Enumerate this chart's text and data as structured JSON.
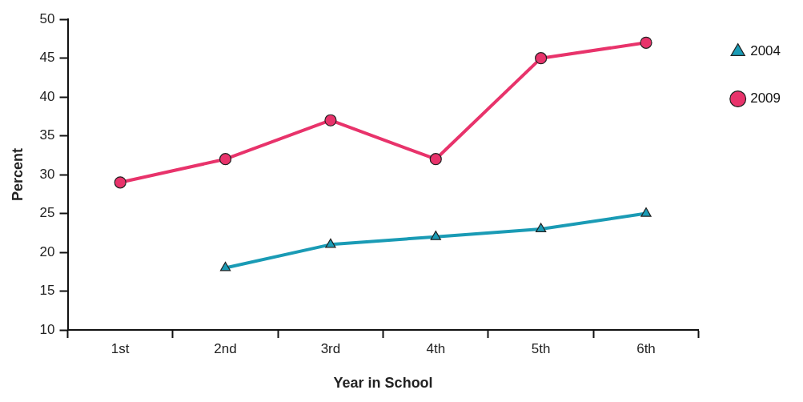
{
  "chart_data": {
    "type": "line",
    "xlabel": "Year in School",
    "ylabel": "Percent",
    "categories": [
      "1st",
      "2nd",
      "3rd",
      "4th",
      "5th",
      "6th"
    ],
    "series": [
      {
        "name": "2004",
        "color": "#1a9bb5",
        "marker": "triangle",
        "values": [
          null,
          18,
          21,
          22,
          23,
          25
        ]
      },
      {
        "name": "2009",
        "color": "#e8336b",
        "marker": "circle",
        "values": [
          29,
          32,
          37,
          32,
          45,
          47
        ]
      }
    ],
    "ylim": [
      10,
      50
    ],
    "yticks": [
      10,
      15,
      20,
      25,
      30,
      35,
      40,
      45,
      50
    ],
    "grid": false,
    "legend": "top right",
    "line_style": "solid"
  }
}
